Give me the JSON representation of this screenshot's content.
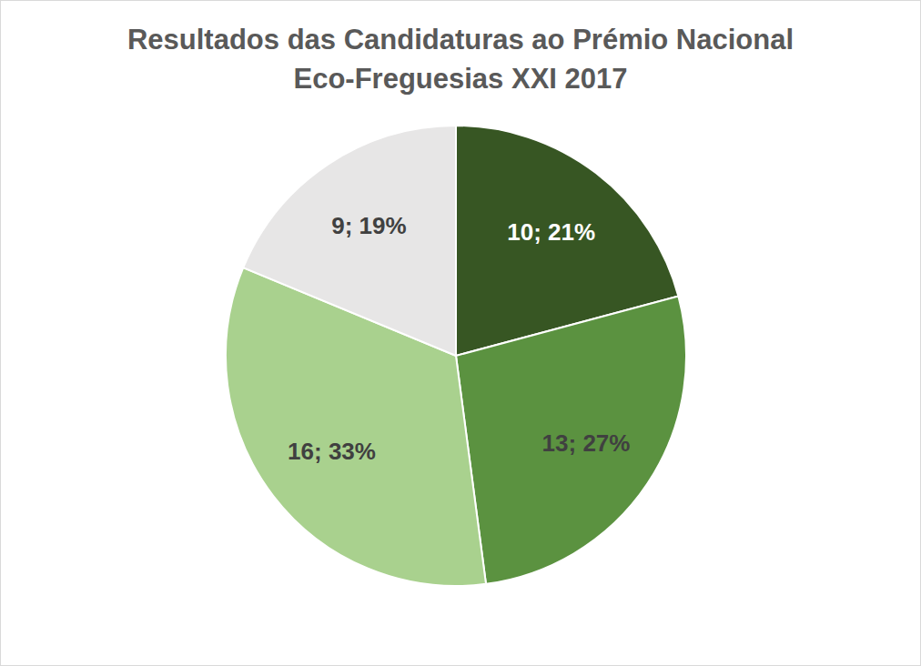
{
  "chart_data": {
    "type": "pie",
    "title": [
      "Resultados das Candidaturas ao Prémio Nacional",
      "Eco-Freguesias XXI 2017"
    ],
    "values": [
      10,
      13,
      16,
      9
    ],
    "value_labels": [
      "10; 21%",
      "13; 27%",
      "16; 33%",
      "9; 19%"
    ],
    "colors": [
      "#375623",
      "#5b9240",
      "#a9d18e",
      "#e7e6e6"
    ],
    "data_labels": true
  }
}
